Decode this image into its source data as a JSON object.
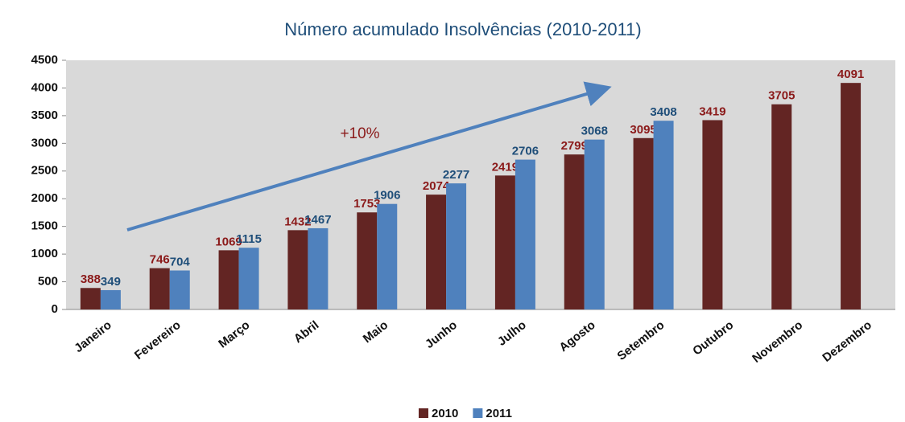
{
  "chart_data": {
    "type": "bar",
    "title": "Número acumulado Insolvências (2010-2011)",
    "categories": [
      "Janeiro",
      "Fevereiro",
      "Março",
      "Abril",
      "Maio",
      "Junho",
      "Julho",
      "Agosto",
      "Setembro",
      "Outubro",
      "Novembro",
      "Dezembro"
    ],
    "series": [
      {
        "name": "2010",
        "color": "#632523",
        "label_color": "#8b1a1a",
        "values": [
          388,
          746,
          1069,
          1432,
          1753,
          2074,
          2419,
          2799,
          3095,
          3419,
          3705,
          4091
        ]
      },
      {
        "name": "2011",
        "color": "#4f81bd",
        "label_color": "#1f4e79",
        "values": [
          349,
          704,
          1115,
          1467,
          1906,
          2277,
          2706,
          3068,
          3408,
          null,
          null,
          null
        ]
      }
    ],
    "ylim": [
      0,
      4500
    ],
    "yticks": [
      0,
      500,
      1000,
      1500,
      2000,
      2500,
      3000,
      3500,
      4000,
      4500
    ],
    "grid": false,
    "annotation": "+10%",
    "legend": "bottom"
  }
}
